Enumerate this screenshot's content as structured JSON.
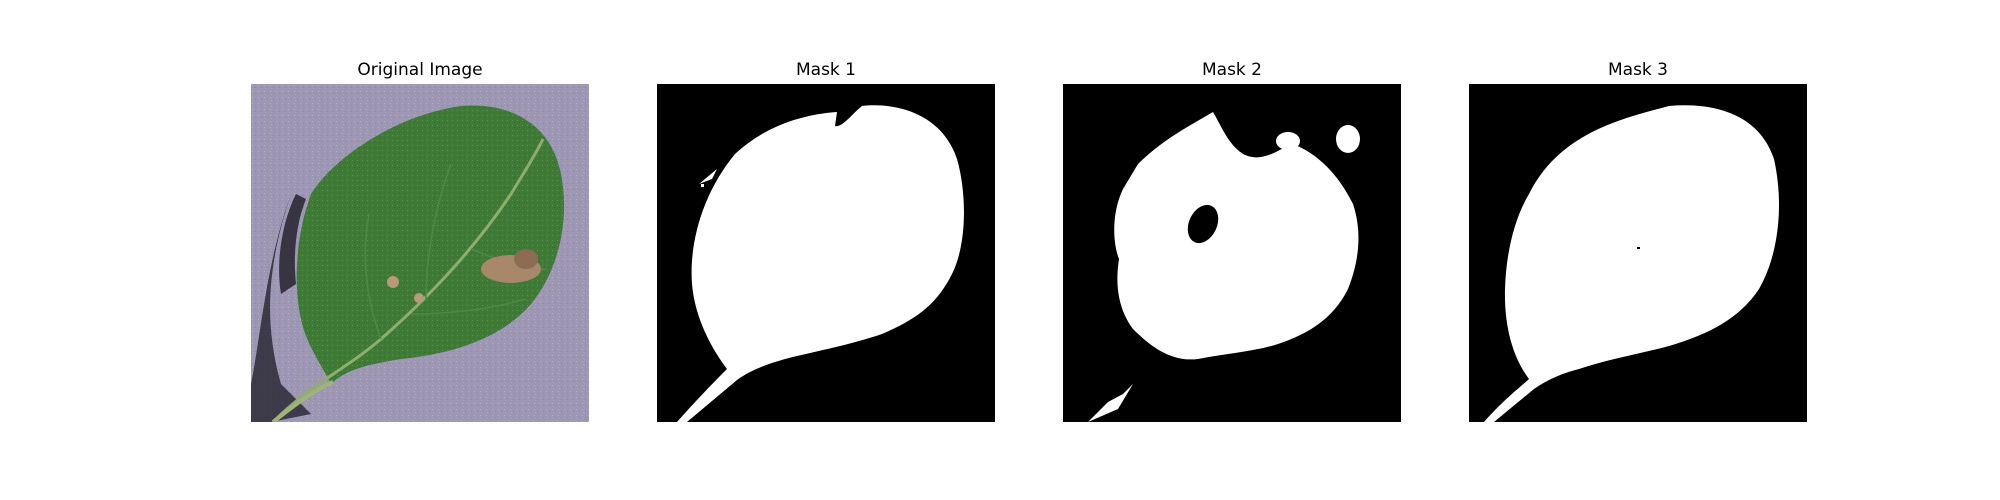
{
  "figure": {
    "panels": [
      {
        "title": "Original Image",
        "kind": "photo",
        "subject": "leaf-photo"
      },
      {
        "title": "Mask 1",
        "kind": "binary-mask"
      },
      {
        "title": "Mask 2",
        "kind": "binary-mask"
      },
      {
        "title": "Mask 3",
        "kind": "binary-mask"
      }
    ],
    "colors": {
      "mask_background": "#000000",
      "mask_foreground": "#ffffff",
      "photo_background": "#9d97b3",
      "leaf_green": "#3f7a37",
      "leaf_dark": "#2f5e2a",
      "lesion_brown": "#a8876a",
      "shadow": "#2d2a36"
    }
  }
}
